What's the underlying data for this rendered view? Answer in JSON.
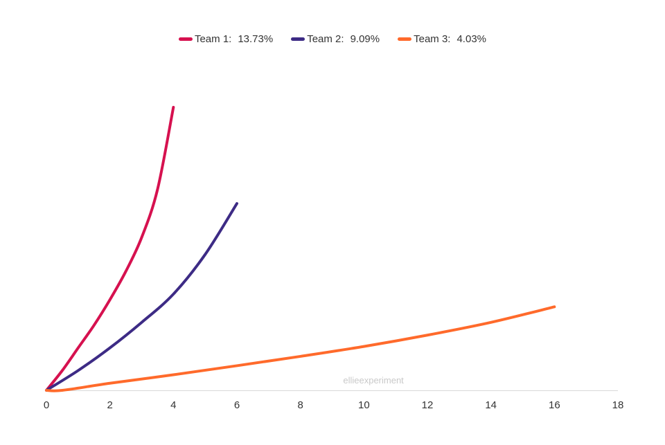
{
  "chart_data": {
    "type": "line",
    "title": "",
    "xlabel": "",
    "ylabel": "",
    "xlim": [
      0,
      18
    ],
    "ylim": [
      0,
      1.0
    ],
    "x_ticks": [
      0,
      2,
      4,
      6,
      8,
      10,
      12,
      14,
      16,
      18
    ],
    "y_axis_visible": false,
    "grid": false,
    "legend_position": "top-center",
    "watermark": "ellieexperiment",
    "series": [
      {
        "name": "Team 1:",
        "legend_value": "13.73%",
        "color": "#d6114f",
        "x": [
          0,
          0.5,
          1,
          1.5,
          2,
          2.5,
          3,
          3.5,
          4
        ],
        "y": [
          0,
          0.07,
          0.15,
          0.23,
          0.32,
          0.42,
          0.54,
          0.71,
          1.0
        ]
      },
      {
        "name": "Team 2:",
        "legend_value": "9.09%",
        "color": "#3d2b85",
        "x": [
          0,
          1,
          2,
          3,
          4,
          5,
          6
        ],
        "y": [
          0,
          0.07,
          0.15,
          0.24,
          0.34,
          0.48,
          0.66
        ]
      },
      {
        "name": "Team 3:",
        "legend_value": "4.03%",
        "color": "#ff6a2b",
        "x": [
          0,
          0.5,
          2,
          4,
          6,
          8,
          10,
          12,
          14,
          16
        ],
        "y": [
          0,
          0,
          0.025,
          0.055,
          0.087,
          0.12,
          0.155,
          0.195,
          0.24,
          0.295
        ]
      }
    ]
  }
}
